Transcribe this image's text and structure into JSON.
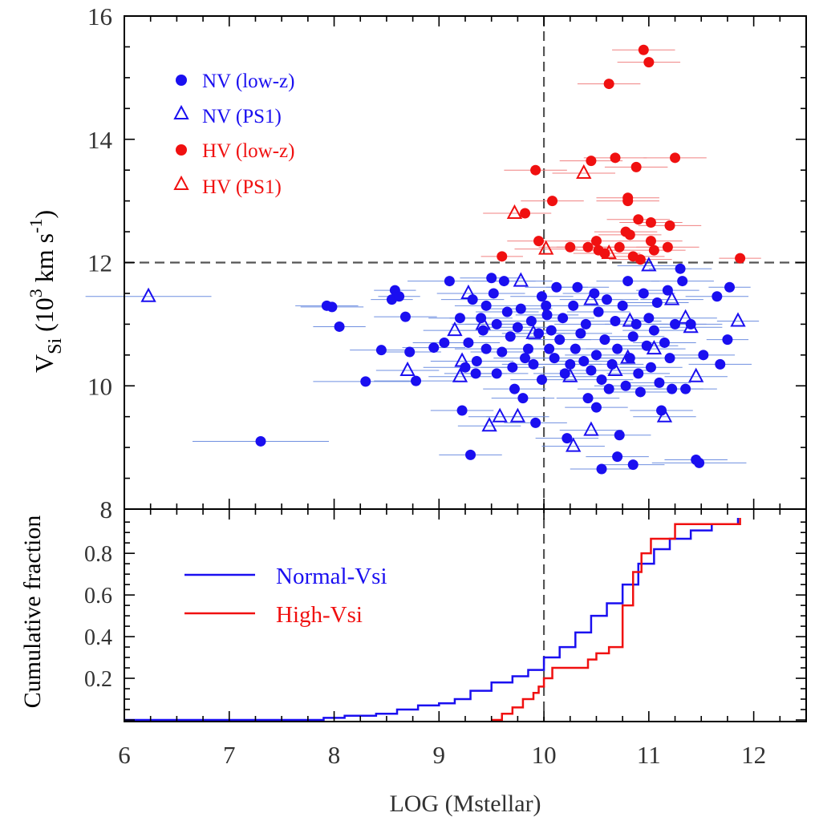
{
  "chart_data": [
    {
      "type": "scatter",
      "title": "",
      "xlabel": "",
      "ylabel_main": "V",
      "ylabel_sub": "Si",
      "ylabel_rest": "(10",
      "ylabel_sup3": "3",
      "ylabel_units": "km s",
      "ylabel_sup_m1": "-1",
      "ylabel_close": ")",
      "xlim": [
        6,
        12.5
      ],
      "ylim": [
        8,
        16
      ],
      "yticks": [
        "8",
        "10",
        "12",
        "14",
        "16"
      ],
      "ref_lines": {
        "x": 10,
        "y": 12
      },
      "legend_entries": [
        "NV (low-z)",
        "NV (PS1)",
        "HV (low-z)",
        "HV (PS1)"
      ],
      "colors": {
        "nv": "#1a0ff0",
        "hv": "#f01010",
        "err_nv": "#6f8fe0",
        "err_hv": "#f08080",
        "ref": "#555555"
      },
      "series": [
        {
          "name": "NV (low-z)",
          "marker": "circle",
          "points": [
            [
              7.3,
              9.1,
              0.65
            ],
            [
              7.93,
              11.3,
              0.3
            ],
            [
              7.98,
              11.28,
              0.3
            ],
            [
              8.05,
              10.96,
              0.25
            ],
            [
              8.3,
              10.07,
              0.5
            ],
            [
              8.45,
              10.58,
              0.3
            ],
            [
              8.55,
              11.4,
              0.2
            ],
            [
              8.58,
              11.55,
              0.2
            ],
            [
              8.62,
              11.45,
              0.2
            ],
            [
              8.68,
              11.12,
              0.3
            ],
            [
              8.72,
              10.55,
              0.3
            ],
            [
              8.78,
              10.08,
              0.4
            ],
            [
              8.95,
              10.62,
              0.3
            ],
            [
              9.05,
              10.7,
              0.3
            ],
            [
              9.1,
              11.7,
              0.4
            ],
            [
              9.2,
              11.1,
              0.3
            ],
            [
              9.22,
              9.6,
              0.3
            ],
            [
              9.25,
              10.3,
              0.4
            ],
            [
              9.28,
              10.7,
              0.3
            ],
            [
              9.3,
              8.88,
              0.3
            ],
            [
              9.32,
              11.4,
              0.3
            ],
            [
              9.35,
              10.2,
              0.3
            ],
            [
              9.36,
              10.4,
              0.35
            ],
            [
              9.4,
              11.1,
              0.3
            ],
            [
              9.42,
              10.9,
              0.3
            ],
            [
              9.45,
              10.6,
              0.3
            ],
            [
              9.45,
              11.3,
              0.3
            ],
            [
              9.5,
              11.75,
              0.3
            ],
            [
              9.52,
              11.5,
              0.3
            ],
            [
              9.55,
              10.2,
              0.3
            ],
            [
              9.55,
              11.0,
              0.3
            ],
            [
              9.6,
              10.55,
              0.3
            ],
            [
              9.62,
              11.7,
              0.3
            ],
            [
              9.65,
              11.2,
              0.3
            ],
            [
              9.68,
              10.8,
              0.3
            ],
            [
              9.7,
              10.3,
              0.3
            ],
            [
              9.72,
              9.95,
              0.3
            ],
            [
              9.75,
              10.95,
              0.3
            ],
            [
              9.78,
              11.25,
              0.3
            ],
            [
              9.8,
              9.8,
              0.3
            ],
            [
              9.82,
              10.45,
              0.3
            ],
            [
              9.85,
              10.6,
              0.3
            ],
            [
              9.88,
              11.05,
              0.3
            ],
            [
              9.9,
              10.35,
              0.3
            ],
            [
              9.92,
              9.4,
              0.3
            ],
            [
              9.95,
              10.85,
              0.3
            ],
            [
              9.98,
              11.45,
              0.3
            ],
            [
              9.98,
              10.1,
              0.3
            ],
            [
              10.02,
              11.3,
              0.3
            ],
            [
              10.03,
              11.15,
              0.3
            ],
            [
              10.05,
              10.6,
              0.3
            ],
            [
              10.07,
              10.9,
              0.3
            ],
            [
              10.1,
              10.45,
              0.3
            ],
            [
              10.12,
              11.6,
              0.3
            ],
            [
              10.15,
              10.75,
              0.3
            ],
            [
              10.18,
              11.1,
              0.3
            ],
            [
              10.2,
              10.2,
              0.3
            ],
            [
              10.22,
              9.15,
              0.3
            ],
            [
              10.25,
              10.35,
              0.3
            ],
            [
              10.28,
              11.3,
              0.3
            ],
            [
              10.3,
              10.6,
              0.3
            ],
            [
              10.32,
              11.6,
              0.3
            ],
            [
              10.35,
              10.85,
              0.3
            ],
            [
              10.38,
              10.4,
              0.3
            ],
            [
              10.4,
              11.0,
              0.3
            ],
            [
              10.42,
              9.8,
              0.3
            ],
            [
              10.45,
              10.25,
              0.3
            ],
            [
              10.48,
              11.5,
              0.3
            ],
            [
              10.5,
              10.5,
              0.3
            ],
            [
              10.5,
              9.65,
              0.3
            ],
            [
              10.52,
              11.2,
              0.3
            ],
            [
              10.55,
              10.1,
              0.3
            ],
            [
              10.55,
              8.65,
              0.3
            ],
            [
              10.58,
              10.75,
              0.3
            ],
            [
              10.6,
              11.4,
              0.3
            ],
            [
              10.62,
              9.95,
              0.3
            ],
            [
              10.65,
              10.35,
              0.3
            ],
            [
              10.68,
              11.05,
              0.3
            ],
            [
              10.7,
              10.6,
              0.3
            ],
            [
              10.7,
              8.85,
              0.3
            ],
            [
              10.72,
              9.2,
              0.3
            ],
            [
              10.75,
              11.3,
              0.3
            ],
            [
              10.78,
              10.0,
              0.3
            ],
            [
              10.8,
              11.7,
              0.3
            ],
            [
              10.82,
              10.45,
              0.3
            ],
            [
              10.85,
              10.8,
              0.3
            ],
            [
              10.85,
              8.72,
              0.3
            ],
            [
              10.88,
              11.0,
              0.3
            ],
            [
              10.9,
              10.2,
              0.3
            ],
            [
              10.92,
              9.9,
              0.3
            ],
            [
              10.95,
              11.5,
              0.3
            ],
            [
              10.98,
              10.65,
              0.3
            ],
            [
              11.0,
              11.1,
              0.3
            ],
            [
              11.02,
              10.3,
              0.3
            ],
            [
              11.05,
              10.9,
              0.3
            ],
            [
              11.08,
              11.35,
              0.3
            ],
            [
              11.1,
              10.05,
              0.3
            ],
            [
              11.12,
              9.6,
              0.3
            ],
            [
              11.15,
              10.7,
              0.3
            ],
            [
              11.18,
              11.55,
              0.3
            ],
            [
              11.2,
              10.45,
              0.3
            ],
            [
              11.22,
              9.95,
              0.3
            ],
            [
              11.25,
              11.0,
              0.3
            ],
            [
              11.3,
              11.9,
              0.3
            ],
            [
              11.32,
              11.7,
              0.3
            ],
            [
              11.35,
              9.95,
              0.3
            ],
            [
              11.4,
              11.0,
              0.3
            ],
            [
              11.45,
              8.8,
              0.3
            ],
            [
              11.48,
              8.75,
              0.45
            ],
            [
              11.52,
              10.5,
              0.3
            ],
            [
              11.65,
              11.45,
              0.3
            ],
            [
              11.68,
              10.35,
              0.3
            ],
            [
              11.75,
              10.75,
              0.2
            ],
            [
              11.77,
              11.6,
              0.2
            ]
          ]
        },
        {
          "name": "NV (PS1)",
          "marker": "triangle",
          "points": [
            [
              6.23,
              11.45,
              0.6
            ],
            [
              8.7,
              10.25,
              0.3
            ],
            [
              9.15,
              10.9,
              0.3
            ],
            [
              9.2,
              10.15,
              0.3
            ],
            [
              9.22,
              10.4,
              0.3
            ],
            [
              9.28,
              11.5,
              0.3
            ],
            [
              9.42,
              11.0,
              0.3
            ],
            [
              9.48,
              9.35,
              0.3
            ],
            [
              9.58,
              9.5,
              0.3
            ],
            [
              9.75,
              9.5,
              0.3
            ],
            [
              9.78,
              11.7,
              0.3
            ],
            [
              9.9,
              10.85,
              0.3
            ],
            [
              10.25,
              10.15,
              0.3
            ],
            [
              10.28,
              9.02,
              0.3
            ],
            [
              10.45,
              11.4,
              0.3
            ],
            [
              10.45,
              9.28,
              0.3
            ],
            [
              10.68,
              10.25,
              0.3
            ],
            [
              10.8,
              10.45,
              0.3
            ],
            [
              10.82,
              11.05,
              0.3
            ],
            [
              11.0,
              11.95,
              0.3
            ],
            [
              11.05,
              10.6,
              0.3
            ],
            [
              11.15,
              9.5,
              0.3
            ],
            [
              11.22,
              11.4,
              0.3
            ],
            [
              11.35,
              11.1,
              0.3
            ],
            [
              11.4,
              10.95,
              0.3
            ],
            [
              11.45,
              10.15,
              0.3
            ],
            [
              11.85,
              11.05,
              0.2
            ]
          ]
        },
        {
          "name": "HV (low-z)",
          "marker": "circle",
          "points": [
            [
              9.6,
              12.1,
              0.2
            ],
            [
              9.82,
              12.8,
              0.25
            ],
            [
              9.92,
              13.5,
              0.3
            ],
            [
              9.95,
              12.35,
              0.3
            ],
            [
              10.08,
              13.0,
              0.3
            ],
            [
              10.25,
              12.25,
              0.3
            ],
            [
              10.42,
              12.25,
              0.3
            ],
            [
              10.45,
              13.65,
              0.3
            ],
            [
              10.5,
              12.35,
              0.3
            ],
            [
              10.52,
              12.2,
              0.3
            ],
            [
              10.58,
              12.15,
              0.3
            ],
            [
              10.62,
              14.9,
              0.3
            ],
            [
              10.68,
              13.7,
              0.3
            ],
            [
              10.72,
              12.25,
              0.3
            ],
            [
              10.78,
              12.5,
              0.3
            ],
            [
              10.8,
              13.0,
              0.3
            ],
            [
              10.8,
              13.05,
              0.3
            ],
            [
              10.82,
              12.45,
              0.3
            ],
            [
              10.85,
              12.1,
              0.3
            ],
            [
              10.88,
              13.55,
              0.3
            ],
            [
              10.9,
              12.7,
              0.3
            ],
            [
              10.92,
              12.05,
              0.3
            ],
            [
              10.95,
              15.45,
              0.3
            ],
            [
              11.0,
              15.25,
              0.3
            ],
            [
              11.02,
              12.35,
              0.3
            ],
            [
              11.02,
              12.65,
              0.3
            ],
            [
              11.05,
              12.2,
              0.3
            ],
            [
              11.18,
              12.25,
              0.3
            ],
            [
              11.2,
              12.6,
              0.3
            ],
            [
              11.25,
              13.7,
              0.3
            ],
            [
              11.87,
              12.07,
              0.2
            ]
          ]
        },
        {
          "name": "HV (PS1)",
          "marker": "triangle",
          "points": [
            [
              9.72,
              12.8,
              0.3
            ],
            [
              10.02,
              12.22,
              0.3
            ],
            [
              10.38,
              13.45,
              0.3
            ],
            [
              10.62,
              12.15,
              0.3
            ]
          ]
        }
      ]
    },
    {
      "type": "line",
      "title": "",
      "xlabel": "LOG (Mstellar)",
      "ylabel": "Cumulative fraction",
      "xlim": [
        6,
        12.5
      ],
      "ylim": [
        0,
        0.97
      ],
      "xticks": [
        "6",
        "7",
        "8",
        "9",
        "10",
        "11",
        "12"
      ],
      "yticks": [
        "0.2",
        "0.4",
        "0.6",
        "0.8"
      ],
      "legend_entries": [
        "Normal-Vsi",
        "High-Vsi"
      ],
      "series": [
        {
          "name": "Normal-Vsi",
          "color": "#1a0ff0",
          "x": [
            6.0,
            7.9,
            8.1,
            8.4,
            8.6,
            8.8,
            9.0,
            9.15,
            9.3,
            9.5,
            9.7,
            9.85,
            10.0,
            10.15,
            10.3,
            10.45,
            10.6,
            10.75,
            10.9,
            11.05,
            11.2,
            11.4,
            11.6,
            11.85
          ],
          "y": [
            0.0,
            0.01,
            0.02,
            0.03,
            0.05,
            0.07,
            0.08,
            0.1,
            0.14,
            0.18,
            0.21,
            0.24,
            0.3,
            0.35,
            0.42,
            0.5,
            0.56,
            0.65,
            0.75,
            0.82,
            0.87,
            0.91,
            0.94,
            0.97
          ]
        },
        {
          "name": "High-Vsi",
          "color": "#f01010",
          "x": [
            9.5,
            9.6,
            9.7,
            9.8,
            9.9,
            9.95,
            10.0,
            10.08,
            10.3,
            10.42,
            10.5,
            10.62,
            10.75,
            10.85,
            10.93,
            11.02,
            11.25,
            11.87
          ],
          "y": [
            0.0,
            0.03,
            0.06,
            0.1,
            0.13,
            0.16,
            0.2,
            0.25,
            0.25,
            0.29,
            0.32,
            0.35,
            0.55,
            0.71,
            0.8,
            0.87,
            0.94,
            0.97
          ]
        }
      ]
    }
  ]
}
